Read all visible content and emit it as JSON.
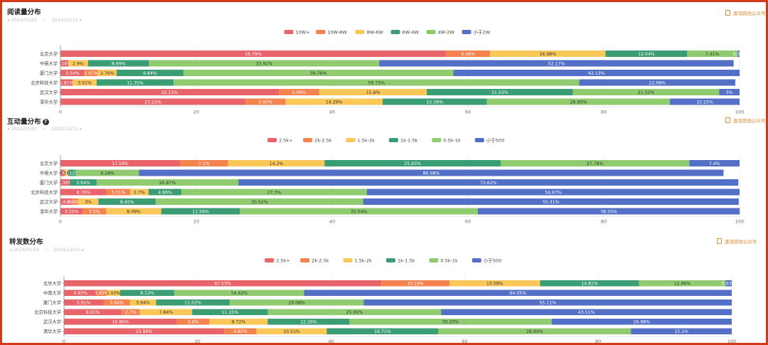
{
  "link_text": "查询其他公众号",
  "panels": [
    {
      "title": "阅读量分布",
      "has_help": false,
      "date_from": "2024/01/01",
      "date_sep": "~",
      "date_to": "2024/12/31"
    },
    {
      "title": "互动量分布",
      "has_help": true,
      "date_from": "2024/01/01",
      "date_sep": "~",
      "date_to": "2024/12/31"
    },
    {
      "title": "转发数分布",
      "has_help": false,
      "date_from": "2024/01/01",
      "date_sep": "~",
      "date_to": "2024/12/31"
    }
  ],
  "colors": [
    "#e8636a",
    "#f5834f",
    "#f9c859",
    "#3a9d73",
    "#90cc6f",
    "#5470c6"
  ],
  "chart_data": [
    {
      "type": "bar",
      "orientation": "horizontal",
      "stacked": true,
      "title": "阅读量分布",
      "categories": [
        "北京大学",
        "中南大学",
        "厦门大学",
        "北京科技大学",
        "武汉大学",
        "清华大学"
      ],
      "xlim": [
        0,
        100
      ],
      "xticks": [
        0,
        20,
        40,
        60,
        80,
        100
      ],
      "legend_position": "top-center",
      "series": [
        {
          "name": "10W+",
          "values": [
            56.79,
            1.16,
            3.54,
            1.81,
            32.15,
            27.22
          ],
          "labels": [
            "56.79%",
            "1.16%",
            "3.54%",
            "1.81%",
            "32.15%",
            "27.22%"
          ]
        },
        {
          "name": "10W-8W",
          "values": [
            6.48,
            0,
            1.97,
            0,
            5.99,
            5.93
          ],
          "labels": [
            "6.48%",
            "",
            "1.97%",
            "",
            "5.99%",
            "5.93%"
          ]
        },
        {
          "name": "8W-6W",
          "values": [
            16.98,
            2.9,
            2.76,
            3.51,
            15.8,
            14.29
          ],
          "labels": [
            "16.98%",
            "2.9%",
            "2.76%",
            "3.51%",
            "15.8%",
            "14.29%"
          ]
        },
        {
          "name": "6W-4W",
          "values": [
            12.04,
            8.99,
            9.84,
            11.35,
            21.53,
            15.36
          ],
          "labels": [
            "12.04%",
            "8.99%",
            "9.84%",
            "11.35%",
            "21.53%",
            "15.36%"
          ]
        },
        {
          "name": "4W-2W",
          "values": [
            7.41,
            33.91,
            39.76,
            59.73,
            21.53,
            26.95
          ],
          "labels": [
            "7.41%",
            "33.91%",
            "39.76%",
            "59.73%",
            "21.53%",
            "26.95%"
          ]
        },
        {
          "name": "小于2W",
          "values": [
            0.3,
            52.17,
            42.13,
            22.98,
            3,
            10.25
          ],
          "labels": [
            "0.3%",
            "52.17%",
            "42.13%",
            "22.98%",
            "3%",
            "10.25%"
          ]
        }
      ]
    },
    {
      "type": "bar",
      "orientation": "horizontal",
      "stacked": true,
      "title": "互动量分布",
      "categories": [
        "北京大学",
        "中南大学",
        "厦门大学",
        "北京科技大学",
        "武汉大学",
        "清华大学"
      ],
      "xlim": [
        0,
        100
      ],
      "xticks": [
        0,
        20,
        40,
        60,
        80,
        100
      ],
      "legend_position": "top-center",
      "series": [
        {
          "name": "2.5k+",
          "values": [
            17.59,
            0.58,
            1.39,
            6.76,
            1.61,
            3.25
          ],
          "labels": [
            "17.59%",
            "0.58%",
            "1.39%",
            "6.76%",
            "1.61%",
            "3.25%"
          ]
        },
        {
          "name": "2k-2.5k",
          "values": [
            7.1,
            0,
            0,
            3.51,
            0.99,
            3.5
          ],
          "labels": [
            "7.1%",
            "",
            "",
            "3.51%",
            "0.99%",
            "3.5%"
          ]
        },
        {
          "name": "1.5k-2k",
          "values": [
            14.2,
            0.58,
            0,
            2.7,
            3,
            8.09
          ],
          "labels": [
            "14.2%",
            "0.58%",
            "",
            "2.7%",
            "3%",
            "8.09%"
          ]
        },
        {
          "name": "1k-1.5k",
          "values": [
            25.93,
            1.12,
            3.94,
            4.86,
            8.45,
            11.59
          ],
          "labels": [
            "25.93%",
            "1.12%",
            "3.94%",
            "4.86%",
            "8.45%",
            "11.59%"
          ]
        },
        {
          "name": "0.5k-1k",
          "values": [
            27.78,
            9.28,
            20.87,
            27.3,
            30.52,
            35.04
          ],
          "labels": [
            "27.78%",
            "9.28%",
            "20.87%",
            "27.3%",
            "30.52%",
            "35.04%"
          ]
        },
        {
          "name": "小于500",
          "values": [
            7.4,
            86.08,
            73.62,
            54.87,
            55.31,
            38.55
          ],
          "labels": [
            "7.4%",
            "86.08%",
            "73.62%",
            "54.87%",
            "55.31%",
            "38.55%"
          ]
        }
      ]
    },
    {
      "type": "bar",
      "orientation": "horizontal",
      "stacked": true,
      "title": "转发数分布",
      "categories": [
        "北京大学",
        "中南大学",
        "厦门大学",
        "北京科技大学",
        "武汉大学",
        "清华大学"
      ],
      "xlim": [
        0,
        100
      ],
      "xticks": [
        0,
        20,
        40,
        60,
        80,
        100
      ],
      "legend_position": "top-center",
      "series": [
        {
          "name": "2.5k+",
          "values": [
            47.53,
            4.93,
            5.91,
            8.65,
            16.89,
            23.99
          ],
          "labels": [
            "47.53%",
            "4.93%",
            "5.91%",
            "8.65%",
            "16.89%",
            "23.99%"
          ]
        },
        {
          "name": "2k-2.5k",
          "values": [
            10.19,
            1.45,
            3.94,
            2.7,
            4.9,
            4.85
          ],
          "labels": [
            "10.19%",
            "1.45%",
            "3.94%",
            "2.7%",
            "4.9%",
            "4.85%"
          ]
        },
        {
          "name": "1.5k-2k",
          "values": [
            13.58,
            2.03,
            3.94,
            7.84,
            8.72,
            10.51
          ],
          "labels": [
            "13.58%",
            "2.03%",
            "3.94%",
            "7.84%",
            "8.72%",
            "10.51%"
          ]
        },
        {
          "name": "1k-1.5k",
          "values": [
            14.81,
            8.12,
            11.02,
            11.35,
            12.26,
            16.71
          ],
          "labels": [
            "14.81%",
            "8.12%",
            "11.02%",
            "11.35%",
            "12.26%",
            "16.71%"
          ]
        },
        {
          "name": "0.5k-1k",
          "values": [
            12.96,
            19.42,
            20.08,
            25.95,
            30.25,
            28.84
          ],
          "labels": [
            "12.96%",
            "19.42%",
            "20.08%",
            "25.95%",
            "30.25%",
            "28.84%"
          ]
        },
        {
          "name": "小于500",
          "values": [
            0.93,
            64.05,
            55.11,
            43.51,
            26.98,
            15.1
          ],
          "labels": [
            "0.93%",
            "64.05%",
            "55.11%",
            "43.51%",
            "26.98%",
            "15.1%"
          ]
        }
      ]
    }
  ]
}
